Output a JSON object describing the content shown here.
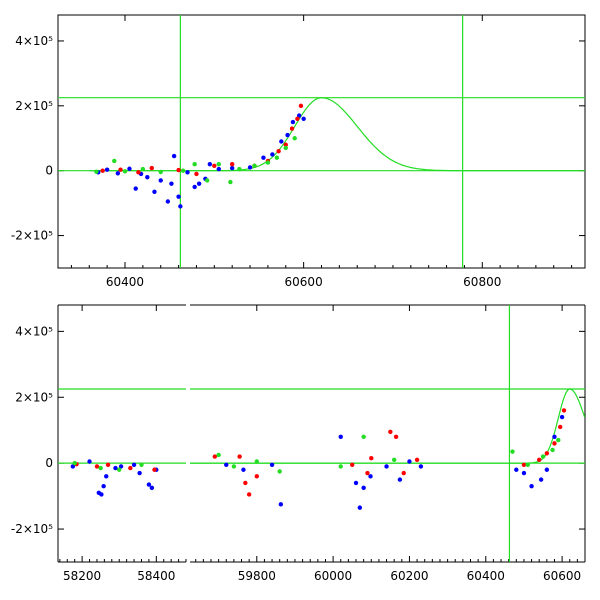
{
  "chart_data": [
    {
      "type": "scatter",
      "title": "",
      "xlabel": "",
      "ylabel": "",
      "xlim": [
        60325,
        60915
      ],
      "ylim": [
        -300000,
        480000
      ],
      "x_ticks": [
        60400,
        60600,
        60800
      ],
      "y_ticks": [
        {
          "value": 400000,
          "label": "4×10⁵"
        },
        {
          "value": 200000,
          "label": "2×10⁵"
        },
        {
          "value": 0,
          "label": "0"
        },
        {
          "value": -200000,
          "label": "-2×10⁵"
        }
      ],
      "reference_lines": {
        "vertical": [
          60462,
          60778
        ],
        "horizontal": [
          0,
          225000
        ]
      },
      "model_peak": {
        "x": 60620,
        "y": 225000
      },
      "series": [
        {
          "color": "#0000ff",
          "points": [
            [
              60370,
              -5000
            ],
            [
              60380,
              3000
            ],
            [
              60392,
              -8000
            ],
            [
              60405,
              6000
            ],
            [
              60412,
              -55000
            ],
            [
              60418,
              -10000
            ],
            [
              60425,
              -20000
            ],
            [
              60433,
              -65000
            ],
            [
              60440,
              -30000
            ],
            [
              60448,
              -95000
            ],
            [
              60452,
              -40000
            ],
            [
              60455,
              45000
            ],
            [
              60460,
              -80000
            ],
            [
              60462,
              -110000
            ],
            [
              60470,
              -5000
            ],
            [
              60478,
              -50000
            ],
            [
              60483,
              -40000
            ],
            [
              60490,
              -25000
            ],
            [
              60495,
              20000
            ],
            [
              60505,
              5000
            ],
            [
              60520,
              8000
            ],
            [
              60540,
              10000
            ],
            [
              60555,
              40000
            ],
            [
              60565,
              50000
            ],
            [
              60575,
              90000
            ],
            [
              60582,
              110000
            ],
            [
              60588,
              150000
            ],
            [
              60595,
              170000
            ],
            [
              60600,
              160000
            ]
          ]
        },
        {
          "color": "#ff0000",
          "points": [
            [
              60375,
              0
            ],
            [
              60395,
              3000
            ],
            [
              60415,
              -5000
            ],
            [
              60430,
              8000
            ],
            [
              60460,
              2000
            ],
            [
              60480,
              -10000
            ],
            [
              60500,
              15000
            ],
            [
              60520,
              20000
            ],
            [
              60545,
              15000
            ],
            [
              60560,
              30000
            ],
            [
              60572,
              60000
            ],
            [
              60580,
              80000
            ],
            [
              60587,
              130000
            ],
            [
              60593,
              160000
            ],
            [
              60597,
              200000
            ]
          ]
        },
        {
          "color": "#22dd22",
          "points": [
            [
              60368,
              -3000
            ],
            [
              60388,
              30000
            ],
            [
              60400,
              -2000
            ],
            [
              60420,
              5000
            ],
            [
              60440,
              -4000
            ],
            [
              60465,
              0
            ],
            [
              60478,
              20000
            ],
            [
              60492,
              -30000
            ],
            [
              60505,
              20000
            ],
            [
              60518,
              -35000
            ],
            [
              60528,
              5000
            ],
            [
              60545,
              15000
            ],
            [
              60560,
              25000
            ],
            [
              60570,
              40000
            ],
            [
              60580,
              70000
            ],
            [
              60590,
              100000
            ]
          ]
        }
      ]
    },
    {
      "type": "scatter",
      "title": "",
      "xlabel": "",
      "ylabel": "",
      "broken_x_axis": true,
      "segments": [
        {
          "xlim": [
            58135,
            58480
          ],
          "x_ticks": [
            58200,
            58400
          ]
        },
        {
          "xlim": [
            59625,
            60660
          ],
          "x_ticks": [
            59800,
            60000,
            60200,
            60400,
            60600
          ]
        }
      ],
      "ylim": [
        -300000,
        480000
      ],
      "y_ticks": [
        {
          "value": 400000,
          "label": "4×10⁵"
        },
        {
          "value": 200000,
          "label": "2×10⁵"
        },
        {
          "value": 0,
          "label": "0"
        },
        {
          "value": -200000,
          "label": "-2×10⁵"
        }
      ],
      "reference_lines": {
        "vertical": [
          60462
        ],
        "horizontal": [
          0,
          225000
        ]
      },
      "model_peak": {
        "x": 60620,
        "y": 225000
      },
      "series": [
        {
          "color": "#0000ff",
          "points": [
            [
              58175,
              -10000
            ],
            [
              58220,
              5000
            ],
            [
              58245,
              -90000
            ],
            [
              58252,
              -95000
            ],
            [
              58258,
              -70000
            ],
            [
              58265,
              -40000
            ],
            [
              58290,
              -15000
            ],
            [
              58305,
              -10000
            ],
            [
              58340,
              -5000
            ],
            [
              58355,
              -30000
            ],
            [
              58380,
              -65000
            ],
            [
              58388,
              -75000
            ],
            [
              58400,
              -20000
            ],
            [
              59720,
              -5000
            ],
            [
              59765,
              -20000
            ],
            [
              59840,
              -5000
            ],
            [
              59863,
              -125000
            ],
            [
              60020,
              80000
            ],
            [
              60060,
              -60000
            ],
            [
              60070,
              -135000
            ],
            [
              60080,
              -75000
            ],
            [
              60098,
              -40000
            ],
            [
              60140,
              -10000
            ],
            [
              60175,
              -50000
            ],
            [
              60200,
              5000
            ],
            [
              60230,
              -10000
            ],
            [
              60480,
              -20000
            ],
            [
              60500,
              -30000
            ],
            [
              60520,
              -70000
            ],
            [
              60545,
              -50000
            ],
            [
              60560,
              -20000
            ],
            [
              60580,
              80000
            ],
            [
              60600,
              140000
            ]
          ]
        },
        {
          "color": "#ff0000",
          "points": [
            [
              58185,
              -3000
            ],
            [
              58240,
              -10000
            ],
            [
              58270,
              -5000
            ],
            [
              58330,
              -15000
            ],
            [
              58395,
              -20000
            ],
            [
              59690,
              20000
            ],
            [
              59755,
              20000
            ],
            [
              59770,
              -60000
            ],
            [
              59780,
              -95000
            ],
            [
              59800,
              -40000
            ],
            [
              60050,
              -5000
            ],
            [
              60090,
              -30000
            ],
            [
              60100,
              15000
            ],
            [
              60150,
              95000
            ],
            [
              60165,
              80000
            ],
            [
              60185,
              -30000
            ],
            [
              60220,
              10000
            ],
            [
              60500,
              -5000
            ],
            [
              60540,
              10000
            ],
            [
              60560,
              30000
            ],
            [
              60580,
              60000
            ],
            [
              60595,
              110000
            ],
            [
              60605,
              160000
            ]
          ]
        },
        {
          "color": "#22dd22",
          "points": [
            [
              58180,
              0
            ],
            [
              58250,
              -15000
            ],
            [
              58300,
              -20000
            ],
            [
              58360,
              -5000
            ],
            [
              59700,
              25000
            ],
            [
              59740,
              -10000
            ],
            [
              59800,
              5000
            ],
            [
              59860,
              -25000
            ],
            [
              60020,
              -10000
            ],
            [
              60080,
              80000
            ],
            [
              60160,
              10000
            ],
            [
              60470,
              35000
            ],
            [
              60510,
              -5000
            ],
            [
              60550,
              20000
            ],
            [
              60575,
              40000
            ],
            [
              60590,
              70000
            ]
          ]
        }
      ]
    }
  ]
}
